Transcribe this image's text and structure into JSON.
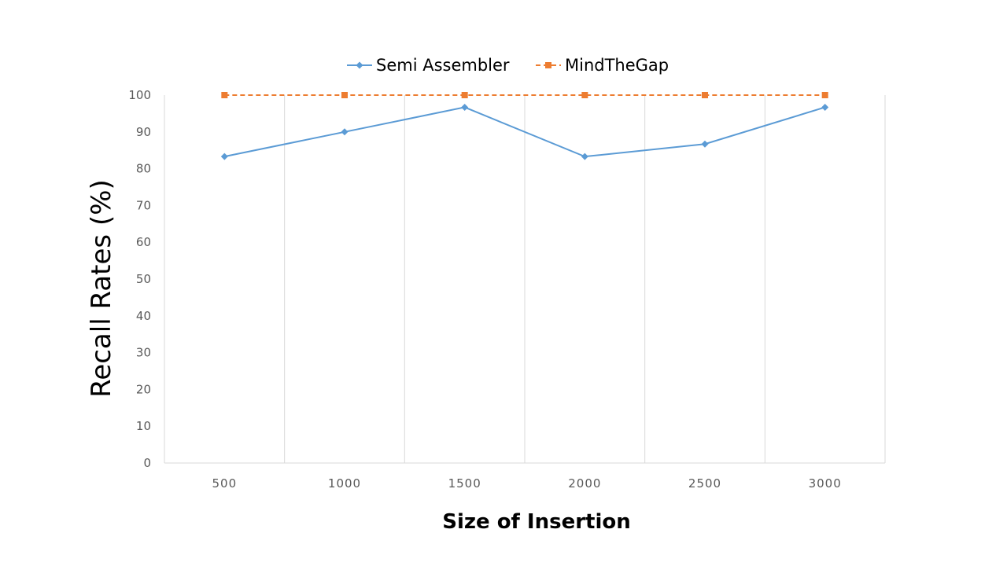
{
  "chart_data": {
    "type": "line",
    "title": "",
    "xlabel": "Size of Insertion",
    "ylabel": "Recall Rates (%)",
    "categories": [
      "500",
      "1000",
      "1500",
      "2000",
      "2500",
      "3000"
    ],
    "ylim": [
      0,
      100
    ],
    "yticks": [
      "0",
      "10",
      "20",
      "30",
      "40",
      "50",
      "60",
      "70",
      "80",
      "90",
      "100"
    ],
    "grid": "vertical",
    "legend_position": "top",
    "series": [
      {
        "name": "Semi Assembler",
        "values": [
          83.3,
          90,
          96.7,
          83.3,
          86.7,
          96.7
        ],
        "color": "#5B9BD5",
        "marker": "diamond",
        "line_style": "solid"
      },
      {
        "name": "MindTheGap",
        "values": [
          100,
          100,
          100,
          100,
          100,
          100
        ],
        "color": "#ED7D31",
        "marker": "square",
        "line_style": "dashed"
      }
    ]
  }
}
